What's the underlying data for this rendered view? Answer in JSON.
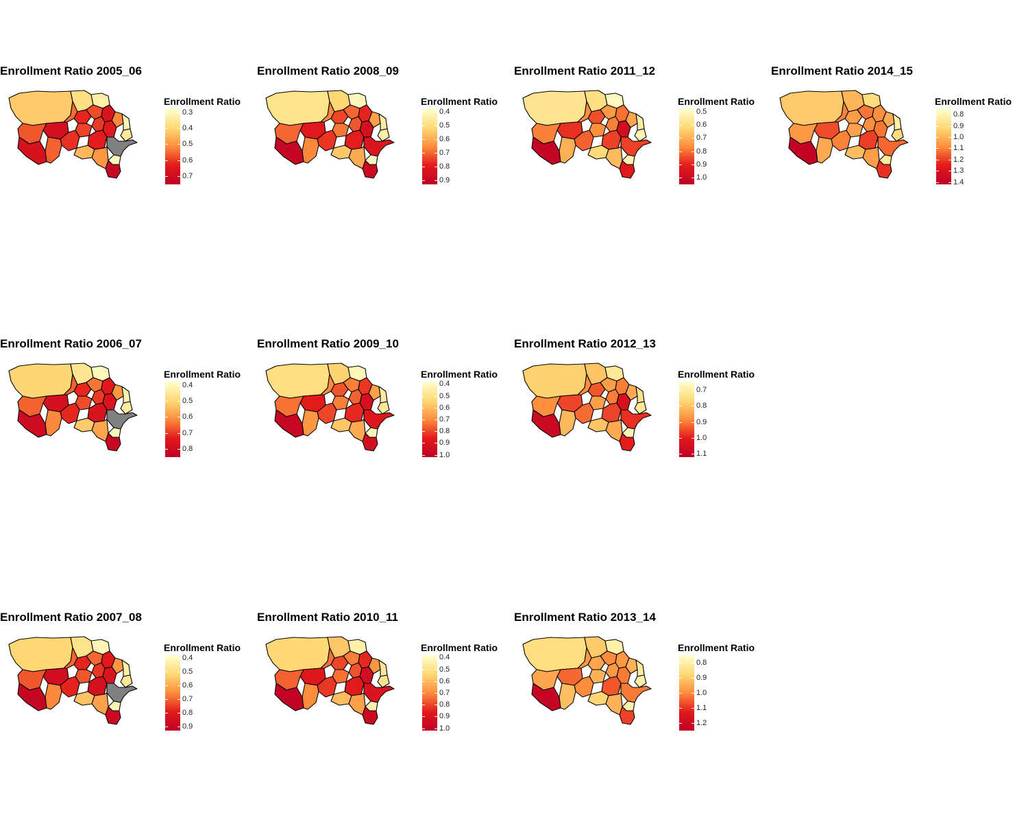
{
  "legend_title": "Enrollment Ratio",
  "colors": {
    "low": "#ffffcc",
    "mid_low": "#fed976",
    "mid": "#fd8d3c",
    "mid_high": "#e31a1c",
    "high": "#bd0026",
    "missing": "#808080",
    "border": "#000000"
  },
  "panels": [
    {
      "title": "Enrollment Ratio 2005_06",
      "min": 0.28,
      "max": 0.75,
      "ticks": [
        "0.3",
        "0.4",
        "0.5",
        "0.6",
        "0.7"
      ],
      "values": [
        0.42,
        0.38,
        0.33,
        0.55,
        0.62,
        0.58,
        0.66,
        0.52,
        0.31,
        0.35,
        0.6,
        0.64,
        0.59,
        0.68,
        0.57,
        0.61,
        0.63,
        0.67,
        0.56,
        null,
        0.3,
        0.72,
        0.45,
        0.5
      ]
    },
    {
      "title": "Enrollment Ratio 2008_09",
      "min": 0.38,
      "max": 0.93,
      "ticks": [
        "0.4",
        "0.5",
        "0.6",
        "0.7",
        "0.8",
        "0.9"
      ],
      "values": [
        0.48,
        0.52,
        0.4,
        0.66,
        0.74,
        0.7,
        0.78,
        0.62,
        0.45,
        0.44,
        0.72,
        0.85,
        0.68,
        0.8,
        0.7,
        0.76,
        0.79,
        0.9,
        0.66,
        0.82,
        0.4,
        0.88,
        0.55,
        0.6
      ]
    },
    {
      "title": "Enrollment Ratio 2011_12",
      "min": 0.48,
      "max": 1.05,
      "ticks": [
        "0.5",
        "0.6",
        "0.7",
        "0.8",
        "0.9",
        "1.0"
      ],
      "values": [
        0.58,
        0.6,
        0.5,
        0.76,
        0.84,
        0.74,
        0.8,
        0.72,
        0.55,
        0.52,
        0.78,
        0.98,
        0.76,
        0.88,
        0.78,
        0.82,
        0.86,
        1.02,
        0.7,
        0.86,
        0.52,
        0.92,
        0.62,
        0.68
      ]
    },
    {
      "title": "Enrollment Ratio 2014_15",
      "min": 0.75,
      "max": 1.42,
      "ticks": [
        "0.8",
        "0.9",
        "1.0",
        "1.1",
        "1.2",
        "1.3",
        "1.4"
      ],
      "values": [
        0.95,
        1.0,
        0.9,
        1.1,
        1.05,
        1.12,
        1.08,
        1.02,
        0.82,
        0.9,
        1.08,
        1.12,
        1.04,
        1.18,
        1.06,
        1.1,
        1.2,
        1.4,
        1.02,
        1.14,
        0.85,
        1.22,
        0.98,
        1.05
      ]
    },
    {
      "title": "Enrollment Ratio 2006_07",
      "min": 0.38,
      "max": 0.85,
      "ticks": [
        "0.4",
        "0.5",
        "0.6",
        "0.7",
        "0.8"
      ],
      "values": [
        0.5,
        0.46,
        0.4,
        0.66,
        0.72,
        0.64,
        0.74,
        0.6,
        0.42,
        0.44,
        0.7,
        0.76,
        0.68,
        0.78,
        0.66,
        0.72,
        0.76,
        0.8,
        0.62,
        null,
        0.4,
        0.82,
        0.52,
        0.58
      ]
    },
    {
      "title": "Enrollment Ratio 2009_10",
      "min": 0.38,
      "max": 1.02,
      "ticks": [
        "0.4",
        "0.5",
        "0.6",
        "0.7",
        "0.8",
        "0.9",
        "1.0"
      ],
      "values": [
        0.52,
        0.55,
        0.42,
        0.7,
        0.78,
        0.72,
        0.82,
        0.66,
        0.46,
        0.48,
        0.76,
        0.92,
        0.72,
        0.86,
        0.74,
        0.8,
        0.84,
        0.98,
        0.68,
        0.88,
        0.42,
        0.94,
        0.58,
        0.64
      ]
    },
    {
      "title": "Enrollment Ratio 2012_13",
      "min": 0.65,
      "max": 1.12,
      "ticks": [
        "0.7",
        "0.8",
        "0.9",
        "1.0",
        "1.1"
      ],
      "values": [
        0.78,
        0.8,
        0.72,
        0.88,
        0.94,
        0.86,
        0.9,
        0.84,
        0.74,
        0.72,
        0.9,
        1.04,
        0.86,
        0.96,
        0.88,
        0.92,
        0.96,
        1.08,
        0.82,
        0.98,
        0.68,
        1.0,
        0.8,
        0.84
      ]
    },
    {
      "title": "Enrollment Ratio 2007_08",
      "min": 0.38,
      "max": 0.93,
      "ticks": [
        "0.4",
        "0.5",
        "0.6",
        "0.7",
        "0.8",
        "0.9"
      ],
      "values": [
        0.52,
        0.48,
        0.42,
        0.7,
        0.78,
        0.7,
        0.8,
        0.64,
        0.44,
        0.46,
        0.76,
        0.82,
        0.72,
        0.86,
        0.72,
        0.78,
        0.84,
        0.9,
        0.66,
        null,
        0.42,
        0.88,
        0.56,
        0.62
      ]
    },
    {
      "title": "Enrollment Ratio 2010_11",
      "min": 0.38,
      "max": 1.02,
      "ticks": [
        "0.4",
        "0.5",
        "0.6",
        "0.7",
        "0.8",
        "0.9",
        "1.0"
      ],
      "values": [
        0.54,
        0.58,
        0.44,
        0.74,
        0.8,
        0.72,
        0.84,
        0.68,
        0.48,
        0.5,
        0.78,
        0.94,
        0.74,
        0.88,
        0.76,
        0.82,
        0.86,
        1.0,
        0.7,
        0.9,
        0.44,
        0.96,
        0.6,
        0.66
      ]
    },
    {
      "title": "Enrollment Ratio 2013_14",
      "min": 0.75,
      "max": 1.25,
      "ticks": [
        "0.8",
        "0.9",
        "1.0",
        "1.1",
        "1.2"
      ],
      "values": [
        0.86,
        0.9,
        0.8,
        0.98,
        0.96,
        1.0,
        0.98,
        0.94,
        0.82,
        0.8,
        0.98,
        1.02,
        0.94,
        1.04,
        0.96,
        1.0,
        1.06,
        1.22,
        0.92,
        1.02,
        0.8,
        1.08,
        0.88,
        0.94
      ]
    }
  ]
}
